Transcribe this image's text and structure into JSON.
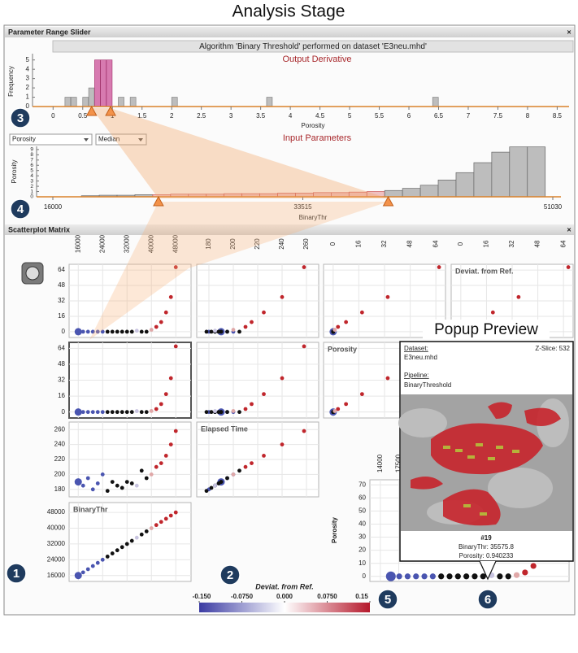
{
  "title": "Analysis Stage",
  "slider_panel": {
    "title": "Parameter Range Slider",
    "close": "×",
    "algorithm": "Algorithm 'Binary Threshold' performed on dataset 'E3neu.mhd'"
  },
  "output_derivative": {
    "title": "Output Derivative",
    "y_label": "Frequency",
    "x_label": "Porosity",
    "xlim": [
      -0.1,
      8.7
    ],
    "xticks": [
      0,
      0.5,
      1,
      1.5,
      2,
      2.5,
      3,
      3.5,
      4,
      4.5,
      5,
      5.5,
      6,
      6.5,
      7,
      7.5,
      8,
      8.5
    ],
    "ylim": [
      0,
      5.5
    ],
    "yticks": [
      0,
      1,
      2,
      3,
      4,
      5
    ],
    "bar_x": [
      0.2,
      0.3,
      0.5,
      0.6,
      0.7,
      0.8,
      0.9,
      1.1,
      1.3,
      2.0,
      3.6,
      6.4
    ],
    "counts": [
      1,
      1,
      1,
      2,
      5,
      5,
      5,
      1,
      1,
      1,
      1,
      1
    ],
    "selection": [
      0.65,
      0.97
    ],
    "color": "#bdbdbd",
    "selected_color": "#d77ab0"
  },
  "input_parameters": {
    "title": "Input Parameters",
    "dropdowns": [
      "Porosity",
      "Median"
    ],
    "y_label": "Porosity",
    "x_label": "BinaryThr",
    "xlim": [
      16000,
      51030
    ],
    "xticks": [
      16000,
      33515,
      51030
    ],
    "ylim": [
      0,
      9.6
    ],
    "yticks": [
      0,
      1,
      2,
      3,
      4,
      5,
      6,
      7,
      8,
      9
    ],
    "bins": [
      18000,
      19250,
      20500,
      21750,
      23000,
      24250,
      25500,
      26750,
      28000,
      29250,
      30500,
      31750,
      33000,
      34250,
      35500,
      36750,
      38000,
      39250,
      40500,
      41750,
      43000,
      44250,
      45500,
      46750,
      48000,
      49250,
      50500
    ],
    "values": [
      0.2,
      0.3,
      0.3,
      0.4,
      0.4,
      0.5,
      0.5,
      0.5,
      0.6,
      0.6,
      0.6,
      0.7,
      0.7,
      0.8,
      0.8,
      0.9,
      1.0,
      1.2,
      1.6,
      2.2,
      3.2,
      4.6,
      6.5,
      8.5,
      9.5,
      9.5
    ],
    "selection": [
      23400,
      39500
    ],
    "color": "#bdbdbd",
    "selected_color": "#efc0c0"
  },
  "splom": {
    "title": "Scatterplot Matrix",
    "close": "×",
    "variables": [
      {
        "label": "BinaryThr",
        "lim": [
          13000,
          53000
        ],
        "ticks": [
          16000,
          24000,
          32000,
          40000,
          48000
        ],
        "values": [
          16000,
          17600,
          19200,
          20800,
          22400,
          24000,
          25600,
          27200,
          28800,
          30400,
          32000,
          33600,
          35200,
          36800,
          38400,
          40000,
          41600,
          43200,
          44800,
          46400,
          48000
        ]
      },
      {
        "label": "Elapsed Time",
        "lim": [
          170,
          270
        ],
        "ticks": [
          180,
          200,
          220,
          240,
          260
        ],
        "values": [
          190,
          185,
          195,
          180,
          188,
          200,
          178,
          190,
          185,
          182,
          190,
          188,
          185,
          205,
          195,
          200,
          210,
          215,
          225,
          240,
          258
        ]
      },
      {
        "label": "Porosity",
        "lim": [
          -6,
          70
        ],
        "ticks": [
          0,
          16,
          32,
          48,
          64
        ],
        "values": [
          0,
          0,
          0,
          0,
          0,
          0,
          0,
          0,
          0,
          0,
          0,
          0,
          0.9,
          0,
          0,
          1,
          3,
          8,
          18,
          34,
          66
        ]
      },
      {
        "label": "Deviat. from Ref.",
        "lim": [
          -6,
          70
        ],
        "ticks": [
          0,
          16,
          32,
          48,
          64
        ],
        "values": [
          0,
          0,
          0,
          0,
          0,
          0,
          0,
          0,
          0,
          0,
          0,
          0,
          1,
          0,
          0,
          2,
          5,
          10,
          20,
          36,
          67
        ]
      }
    ],
    "colors": [
      "#4a55b0",
      "#4a55b0",
      "#4a55b0",
      "#4a55b0",
      "#4a55b0",
      "#4a55b0",
      "#111111",
      "#111111",
      "#111111",
      "#111111",
      "#111111",
      "#111111",
      "#c8c4e0",
      "#111111",
      "#111111",
      "#e0a8a8",
      "#c0262c",
      "#c0262c",
      "#c0262c",
      "#c0262c",
      "#c0262c"
    ]
  },
  "enlarged": {
    "y_label": "Porosity",
    "xlim": [
      12000,
      50000
    ],
    "xticks": [
      14000,
      17500
    ],
    "ylim": [
      -2,
      72
    ],
    "yticks": [
      0,
      10,
      20,
      30,
      40,
      50,
      60,
      70
    ]
  },
  "popup": {
    "title": "Popup Preview",
    "dataset_label": "Dataset:",
    "dataset": "E3neu.mhd",
    "pipeline_label": "Pipeline:",
    "pipeline": "BinaryThreshold",
    "z_slice": "Z-Slice: 532",
    "id": "#19",
    "binary_thr": "BinaryThr: 35575.8",
    "porosity": "Porosity: 0.940233"
  },
  "colorbar": {
    "label": "Deviat. from Ref.",
    "lim": [
      -0.15,
      0.15
    ],
    "ticks": [
      {
        "value": -0.15,
        "label": "-0.150"
      },
      {
        "value": -0.075,
        "label": "-0.0750"
      },
      {
        "value": 0,
        "label": "0.000"
      },
      {
        "value": 0.075,
        "label": "0.0750"
      },
      0.15
    ],
    "colors": [
      "#3b3ba3",
      "#ffffff",
      "#b5182b"
    ]
  },
  "badges": [
    "1",
    "2",
    "3",
    "4",
    "5",
    "6"
  ]
}
